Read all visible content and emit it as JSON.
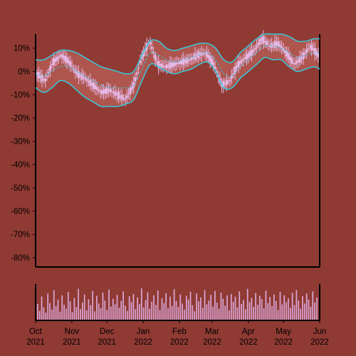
{
  "colors": {
    "background": "#8f3a33",
    "band": "#3cc4d4",
    "band_fill": "#b45a52",
    "candle": "#e6b8e6",
    "volume": "#d9a5d6",
    "axis": "#000000"
  },
  "chart_data": [
    {
      "type": "candlestick",
      "title": "",
      "ylabel": "",
      "ylim": [
        -84,
        16
      ],
      "yticks": [
        10,
        0,
        -10,
        -20,
        -30,
        -40,
        -50,
        -60,
        -70,
        -80
      ],
      "ytick_labels": [
        "10%",
        "0%",
        "-10%",
        "-20%",
        "-30%",
        "-40%",
        "-50%",
        "-60%",
        "-70%",
        "-80%"
      ],
      "xlim": [
        "2021-10-01",
        "2022-06-01"
      ],
      "xticks": [
        "2021-10-01",
        "2021-11-01",
        "2021-12-01",
        "2022-01-01",
        "2022-02-01",
        "2022-03-01",
        "2022-04-01",
        "2022-05-01",
        "2022-06-01"
      ],
      "xtick_labels": [
        [
          "Oct",
          "2021"
        ],
        [
          "Nov",
          "2021"
        ],
        [
          "Dec",
          "2021"
        ],
        [
          "Jan",
          "2022"
        ],
        [
          "Feb",
          "2022"
        ],
        [
          "Mar",
          "2022"
        ],
        [
          "Apr",
          "2022"
        ],
        [
          "May",
          "2022"
        ],
        [
          "Jun",
          "2022"
        ]
      ],
      "series": [
        {
          "role": "close",
          "x": [
            "2021-10-01",
            "2021-10-08",
            "2021-10-15",
            "2021-10-22",
            "2021-10-29",
            "2021-11-05",
            "2021-11-12",
            "2021-11-19",
            "2021-11-26",
            "2021-12-03",
            "2021-12-10",
            "2021-12-17",
            "2021-12-24",
            "2021-12-31",
            "2022-01-07",
            "2022-01-14",
            "2022-01-21",
            "2022-01-28",
            "2022-02-04",
            "2022-02-11",
            "2022-02-18",
            "2022-02-25",
            "2022-03-04",
            "2022-03-11",
            "2022-03-18",
            "2022-03-25",
            "2022-04-01",
            "2022-04-08",
            "2022-04-15",
            "2022-04-22",
            "2022-04-29",
            "2022-05-06",
            "2022-05-13",
            "2022-05-20",
            "2022-05-27",
            "2022-06-01"
          ],
          "values": [
            -1,
            -4,
            4,
            7,
            4,
            -1,
            -3,
            -6,
            -9,
            -8,
            -10,
            -12,
            -6,
            6,
            13,
            3,
            2,
            3,
            4,
            5,
            7,
            8,
            3,
            -6,
            -4,
            3,
            6,
            9,
            14,
            11,
            12,
            8,
            3,
            6,
            11,
            7
          ]
        },
        {
          "role": "upper_band",
          "values": [
            5,
            5,
            7,
            9,
            9,
            8,
            6,
            4,
            2,
            1,
            0,
            -1,
            0,
            7,
            13,
            13,
            10,
            9,
            10,
            11,
            12,
            12,
            10,
            5,
            4,
            8,
            11,
            14,
            16,
            16,
            16,
            15,
            13,
            13,
            14,
            14
          ]
        },
        {
          "role": "lower_band",
          "values": [
            -7,
            -9,
            -7,
            -4,
            -5,
            -8,
            -11,
            -13,
            -15,
            -15,
            -15,
            -14,
            -12,
            -4,
            3,
            2,
            0,
            -1,
            0,
            1,
            3,
            4,
            0,
            -7,
            -7,
            -3,
            0,
            3,
            6,
            5,
            5,
            2,
            0,
            1,
            2,
            1
          ]
        },
        {
          "role": "middle_band",
          "values": [
            -1,
            -2,
            0,
            2,
            2,
            0,
            -2,
            -4,
            -6,
            -7,
            -7,
            -7,
            -6,
            1,
            8,
            7,
            5,
            4,
            5,
            6,
            7,
            8,
            5,
            -1,
            -2,
            2,
            5,
            8,
            11,
            11,
            10,
            8,
            6,
            7,
            8,
            8
          ]
        }
      ]
    },
    {
      "type": "bar",
      "title": "",
      "ylabel": "",
      "role": "volume",
      "x_range": [
        "2021-10-01",
        "2022-06-01"
      ],
      "values": [
        38,
        22,
        55,
        30,
        18,
        62,
        40,
        25,
        70,
        33,
        48,
        20,
        58,
        36,
        27,
        66,
        44,
        19,
        52,
        31,
        73,
        26,
        41,
        60,
        23,
        49,
        35,
        68,
        21,
        57,
        39,
        28,
        64,
        46,
        24,
        71,
        32,
        50,
        37,
        59,
        29,
        45,
        67,
        34,
        22,
        56,
        42,
        61,
        26,
        53,
        38,
        74,
        30,
        47,
        65,
        27,
        43,
        58,
        36,
        69,
        24,
        51,
        40,
        63,
        28,
        55,
        33,
        72,
        45,
        31,
        60,
        39,
        25,
        57,
        48,
        66,
        35,
        21,
        62,
        44,
        53,
        29,
        70,
        37,
        46,
        59,
        32,
        68,
        41,
        27,
        64,
        50,
        34,
        58,
        23,
        61,
        43,
        55,
        30,
        67,
        38,
        47,
        26,
        73,
        42,
        52,
        31,
        63,
        36,
        57,
        49,
        28,
        69,
        40,
        54,
        33,
        60,
        45,
        24,
        66,
        37,
        58,
        42,
        51,
        29,
        64,
        35,
        70,
        46,
        27,
        56,
        39,
        62,
        48,
        32,
        67,
        41,
        53
      ]
    }
  ]
}
